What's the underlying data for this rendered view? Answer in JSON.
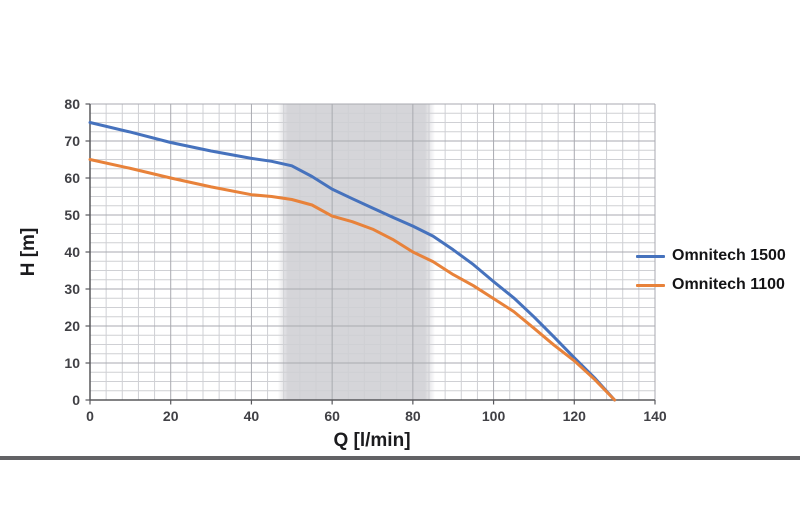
{
  "chart": {
    "x_title": "Q [l/min]",
    "y_title": "H [m]"
  },
  "chart_data": {
    "type": "line",
    "title": "",
    "xlabel": "Q [l/min]",
    "ylabel": "H [m]",
    "xlim": [
      0,
      140
    ],
    "ylim": [
      0,
      80
    ],
    "x_ticks": [
      0,
      20,
      40,
      60,
      80,
      100,
      120,
      140
    ],
    "y_ticks": [
      0,
      10,
      20,
      30,
      40,
      50,
      60,
      70,
      80
    ],
    "x_minor_step": 4,
    "y_minor_step": 2.5,
    "grid": "both",
    "legend_position": "right",
    "band": {
      "x_from": 49,
      "x_to": 83,
      "color": "#d5d5d9"
    },
    "series": [
      {
        "name": "Omnitech 1500",
        "color": "#4672bd",
        "points": [
          [
            0,
            75
          ],
          [
            10,
            72.4
          ],
          [
            20,
            69.6
          ],
          [
            30,
            67.3
          ],
          [
            40,
            65.3
          ],
          [
            45,
            64.5
          ],
          [
            50,
            63.3
          ],
          [
            55,
            60.4
          ],
          [
            60,
            57
          ],
          [
            65,
            54.4
          ],
          [
            70,
            51.9
          ],
          [
            75,
            49.4
          ],
          [
            80,
            47
          ],
          [
            85,
            44.3
          ],
          [
            90,
            40.6
          ],
          [
            95,
            36.6
          ],
          [
            100,
            32
          ],
          [
            105,
            27.6
          ],
          [
            110,
            22.5
          ],
          [
            115,
            17
          ],
          [
            120,
            11.4
          ],
          [
            125,
            6
          ],
          [
            130,
            0
          ]
        ]
      },
      {
        "name": "Omnitech 1100",
        "color": "#e8823a",
        "points": [
          [
            0,
            65
          ],
          [
            10,
            62.6
          ],
          [
            20,
            60
          ],
          [
            30,
            57.6
          ],
          [
            40,
            55.5
          ],
          [
            45,
            55
          ],
          [
            50,
            54.2
          ],
          [
            55,
            52.7
          ],
          [
            60,
            49.7
          ],
          [
            65,
            48.2
          ],
          [
            70,
            46.2
          ],
          [
            75,
            43.4
          ],
          [
            80,
            40
          ],
          [
            85,
            37.4
          ],
          [
            90,
            33.9
          ],
          [
            95,
            30.9
          ],
          [
            100,
            27.4
          ],
          [
            105,
            23.9
          ],
          [
            110,
            19.4
          ],
          [
            115,
            14.8
          ],
          [
            120,
            10.6
          ],
          [
            125,
            5.6
          ],
          [
            130,
            0
          ]
        ]
      }
    ],
    "colors": {
      "grid_minor": "#cfd0d4",
      "grid_major": "#a9aab0",
      "axis": "#58585c",
      "tick_text": "#404045"
    }
  }
}
